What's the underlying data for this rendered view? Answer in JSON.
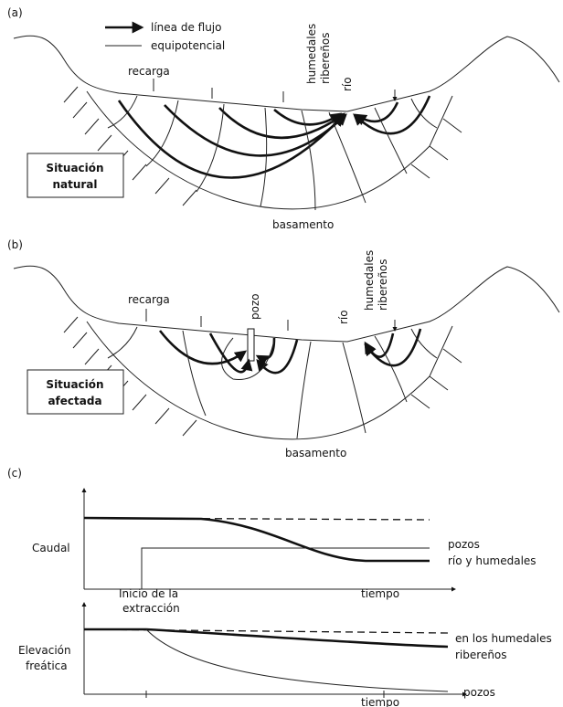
{
  "panel_a": {
    "label": "(a)",
    "legend_flow": "línea de flujo",
    "legend_equipotential": "equipotencial",
    "recharge": "recarga",
    "wetlands_1": "humedales",
    "wetlands_2": "ribereños",
    "river": "río",
    "box_1": "Situación",
    "box_2": "natural",
    "bedrock": "basamento"
  },
  "panel_b": {
    "label": "(b)",
    "recharge": "recarga",
    "well": "pozo",
    "river": "río",
    "wetlands_1": "humedales",
    "wetlands_2": "ribereños",
    "box_1": "Situación",
    "box_2": "afectada",
    "bedrock": "basamento"
  },
  "panel_c": {
    "label": "(c)",
    "top_axis": "Caudal",
    "wells": "pozos",
    "river_wetlands": "río y humedales",
    "start_1": "Inicio de la",
    "start_2": "extracción",
    "time_top": "tiempo",
    "bottom_axis_1": "Elevación",
    "bottom_axis_2": "freática",
    "wetlands_1": "en los humedales",
    "wetlands_2": "ribereños",
    "wells_bottom": "pozos",
    "time_bottom": "tiempo"
  }
}
